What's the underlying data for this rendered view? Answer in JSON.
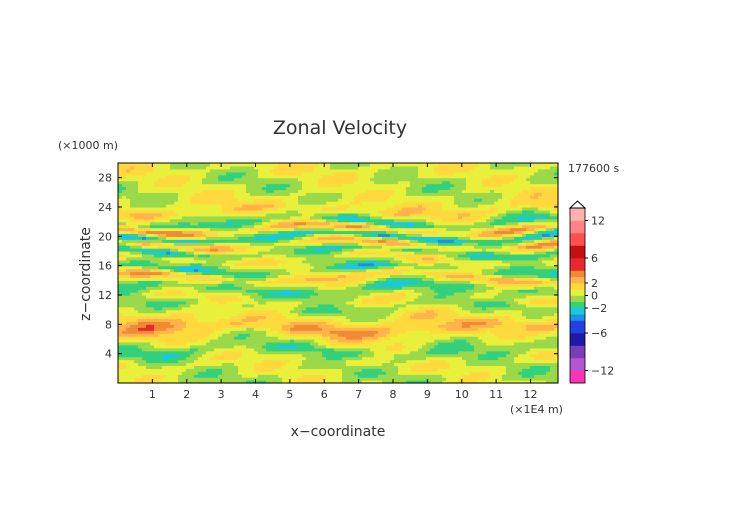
{
  "chart_data": {
    "type": "heatmap",
    "title": "Zonal Velocity",
    "xlabel": "x−coordinate",
    "ylabel": "z−coordinate",
    "x_unit": "(×1E4 m)",
    "y_unit": "(×1000 m)",
    "time_label": "177600 s",
    "xlim": [
      0,
      12.8
    ],
    "ylim": [
      0,
      30
    ],
    "x_ticks": [
      1,
      2,
      3,
      4,
      5,
      6,
      7,
      8,
      9,
      10,
      11,
      12
    ],
    "x_tick_labels": [
      "1",
      "2",
      "3",
      "4",
      "5",
      "6",
      "7",
      "8",
      "9",
      "10",
      "11",
      "12"
    ],
    "y_ticks": [
      4,
      8,
      12,
      16,
      20,
      24,
      28
    ],
    "y_tick_labels": [
      "4",
      "8",
      "12",
      "16",
      "20",
      "24",
      "28"
    ],
    "colorbar": {
      "levels": [
        -14,
        -12,
        -10,
        -8,
        -6,
        -4,
        -3,
        -2,
        -1,
        0,
        1,
        2,
        3,
        4,
        6,
        8,
        10,
        12,
        14
      ],
      "colors": [
        "#ff33b5",
        "#b455d6",
        "#7a3fb8",
        "#1c1aa8",
        "#2340e0",
        "#1e8ee8",
        "#19c9e0",
        "#33d17e",
        "#99d94a",
        "#e9f03c",
        "#ffd93d",
        "#ffb34a",
        "#f08a36",
        "#e8282a",
        "#c41010",
        "#ff4f4f",
        "#ff8585",
        "#ffb0b0"
      ],
      "tick_values": [
        12,
        6,
        2,
        0,
        -2,
        -6,
        -12
      ],
      "tick_labels": [
        "12",
        "6",
        "2",
        "0",
        "−2",
        "−6",
        "−12"
      ]
    },
    "field_bands": [
      {
        "z": 1.5,
        "u": 0.0
      },
      {
        "z": 3.0,
        "u": 0.5
      },
      {
        "z": 4.5,
        "u": -1.0
      },
      {
        "z": 6.5,
        "u": 1.0
      },
      {
        "z": 7.5,
        "u": 2.5
      },
      {
        "z": 9.0,
        "u": 1.0
      },
      {
        "z": 10.5,
        "u": -0.5
      },
      {
        "z": 11.5,
        "u": 0.5
      },
      {
        "z": 13.0,
        "u": -1.5
      },
      {
        "z": 14.5,
        "u": 2.0
      },
      {
        "z": 15.5,
        "u": -1.5
      },
      {
        "z": 17.0,
        "u": 1.0
      },
      {
        "z": 18.0,
        "u": -1.5
      },
      {
        "z": 19.0,
        "u": 2.0
      },
      {
        "z": 20.0,
        "u": -2.5
      },
      {
        "z": 21.0,
        "u": 2.5
      },
      {
        "z": 22.0,
        "u": -1.5
      },
      {
        "z": 23.5,
        "u": 1.5
      },
      {
        "z": 25.0,
        "u": 0.5
      },
      {
        "z": 27.0,
        "u": 0.0
      },
      {
        "z": 29.0,
        "u": 0.5
      }
    ]
  }
}
